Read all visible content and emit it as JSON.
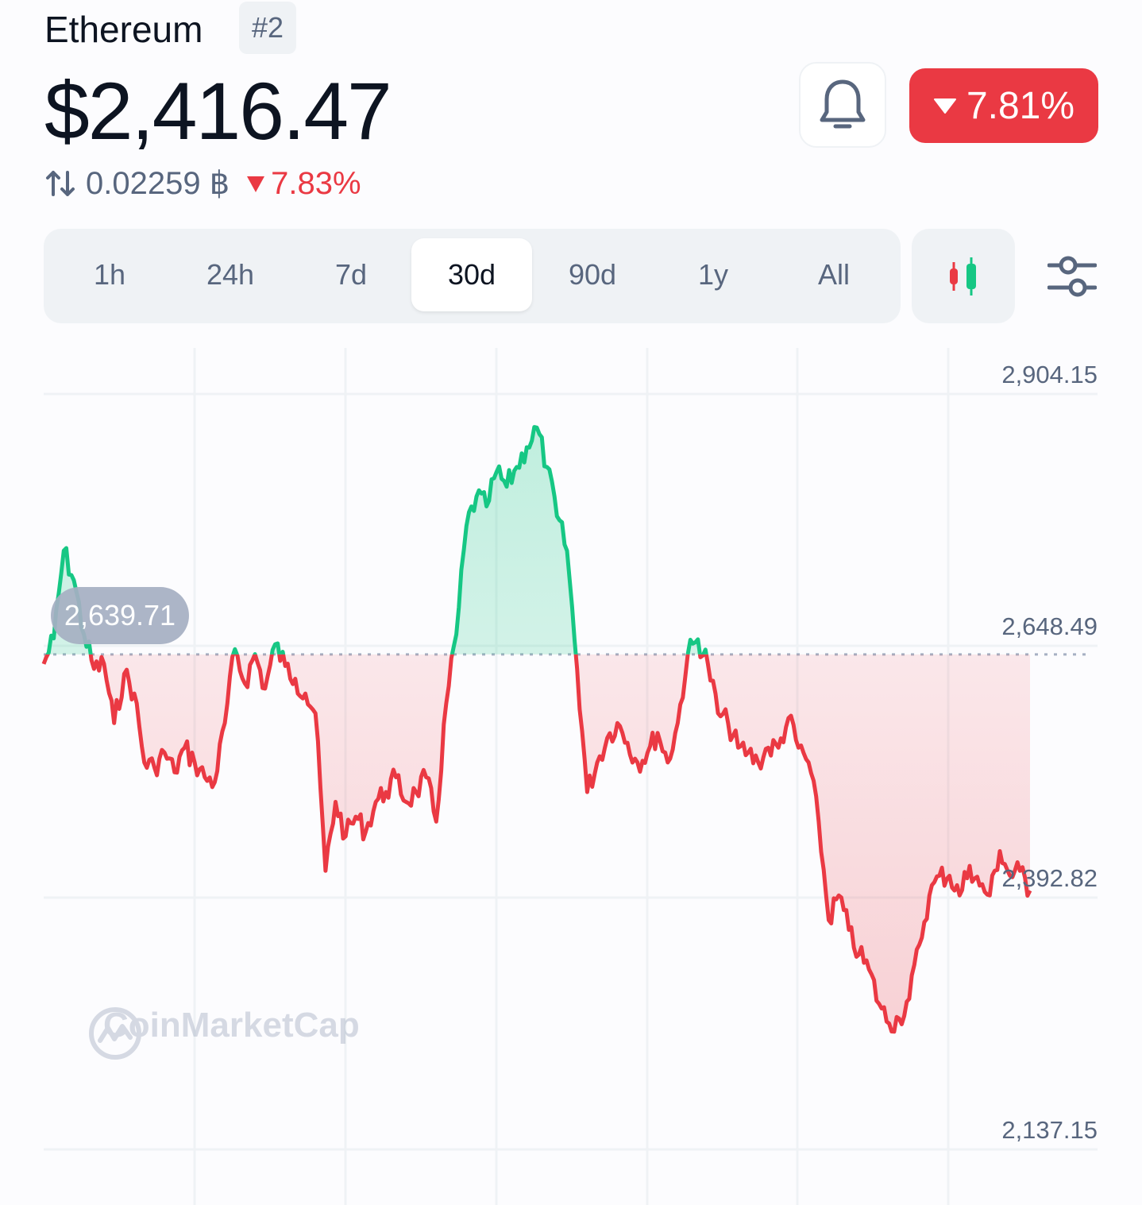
{
  "header": {
    "coin_name": "Ethereum",
    "rank": "#2",
    "price": "$2,416.47",
    "btc_price": "0.02259 ฿",
    "btc_change": "7.83%",
    "change_24h": "7.81%"
  },
  "range_tabs": [
    "1h",
    "24h",
    "7d",
    "30d",
    "90d",
    "1y",
    "All"
  ],
  "active_range": "30d",
  "icons": [
    "swap-icon",
    "bell-icon",
    "candlestick-icon",
    "sliders-icon",
    "caret-down-icon"
  ],
  "colors": {
    "up": "#16c784",
    "down": "#ea3943",
    "muted": "#58667e",
    "tag": "#a6b0c3"
  },
  "watermark": "CoinMarketCap",
  "chart_data": {
    "type": "area",
    "y_ticks": [
      "2,904.15",
      "2,648.49",
      "2,392.82",
      "2,137.15"
    ],
    "ylim": [
      2137.15,
      2904.15
    ],
    "reference_value": 2639.71,
    "reference_label": "2,639.71",
    "grid": true,
    "series": [
      {
        "values": [
          2630,
          2656,
          2745,
          2715,
          2660,
          2625,
          2630,
          2570,
          2620,
          2600,
          2530,
          2525,
          2540,
          2520,
          2545,
          2530,
          2515,
          2510,
          2570,
          2645,
          2610,
          2640,
          2605,
          2650,
          2628,
          2615,
          2600,
          2580,
          2420,
          2490,
          2455,
          2475,
          2460,
          2490,
          2500,
          2515,
          2490,
          2500,
          2515,
          2470,
          2590,
          2660,
          2770,
          2800,
          2790,
          2825,
          2810,
          2830,
          2850,
          2870,
          2830,
          2780,
          2745,
          2625,
          2500,
          2530,
          2555,
          2570,
          2550,
          2530,
          2540,
          2560,
          2530,
          2570,
          2640,
          2655,
          2630,
          2580,
          2570,
          2545,
          2540,
          2530,
          2545,
          2545,
          2575,
          2545,
          2530,
          2470,
          2370,
          2395,
          2360,
          2335,
          2320,
          2285,
          2265,
          2270,
          2290,
          2345,
          2395,
          2415,
          2415,
          2395,
          2425,
          2405,
          2395,
          2440,
          2415,
          2420,
          2400
        ]
      }
    ]
  }
}
